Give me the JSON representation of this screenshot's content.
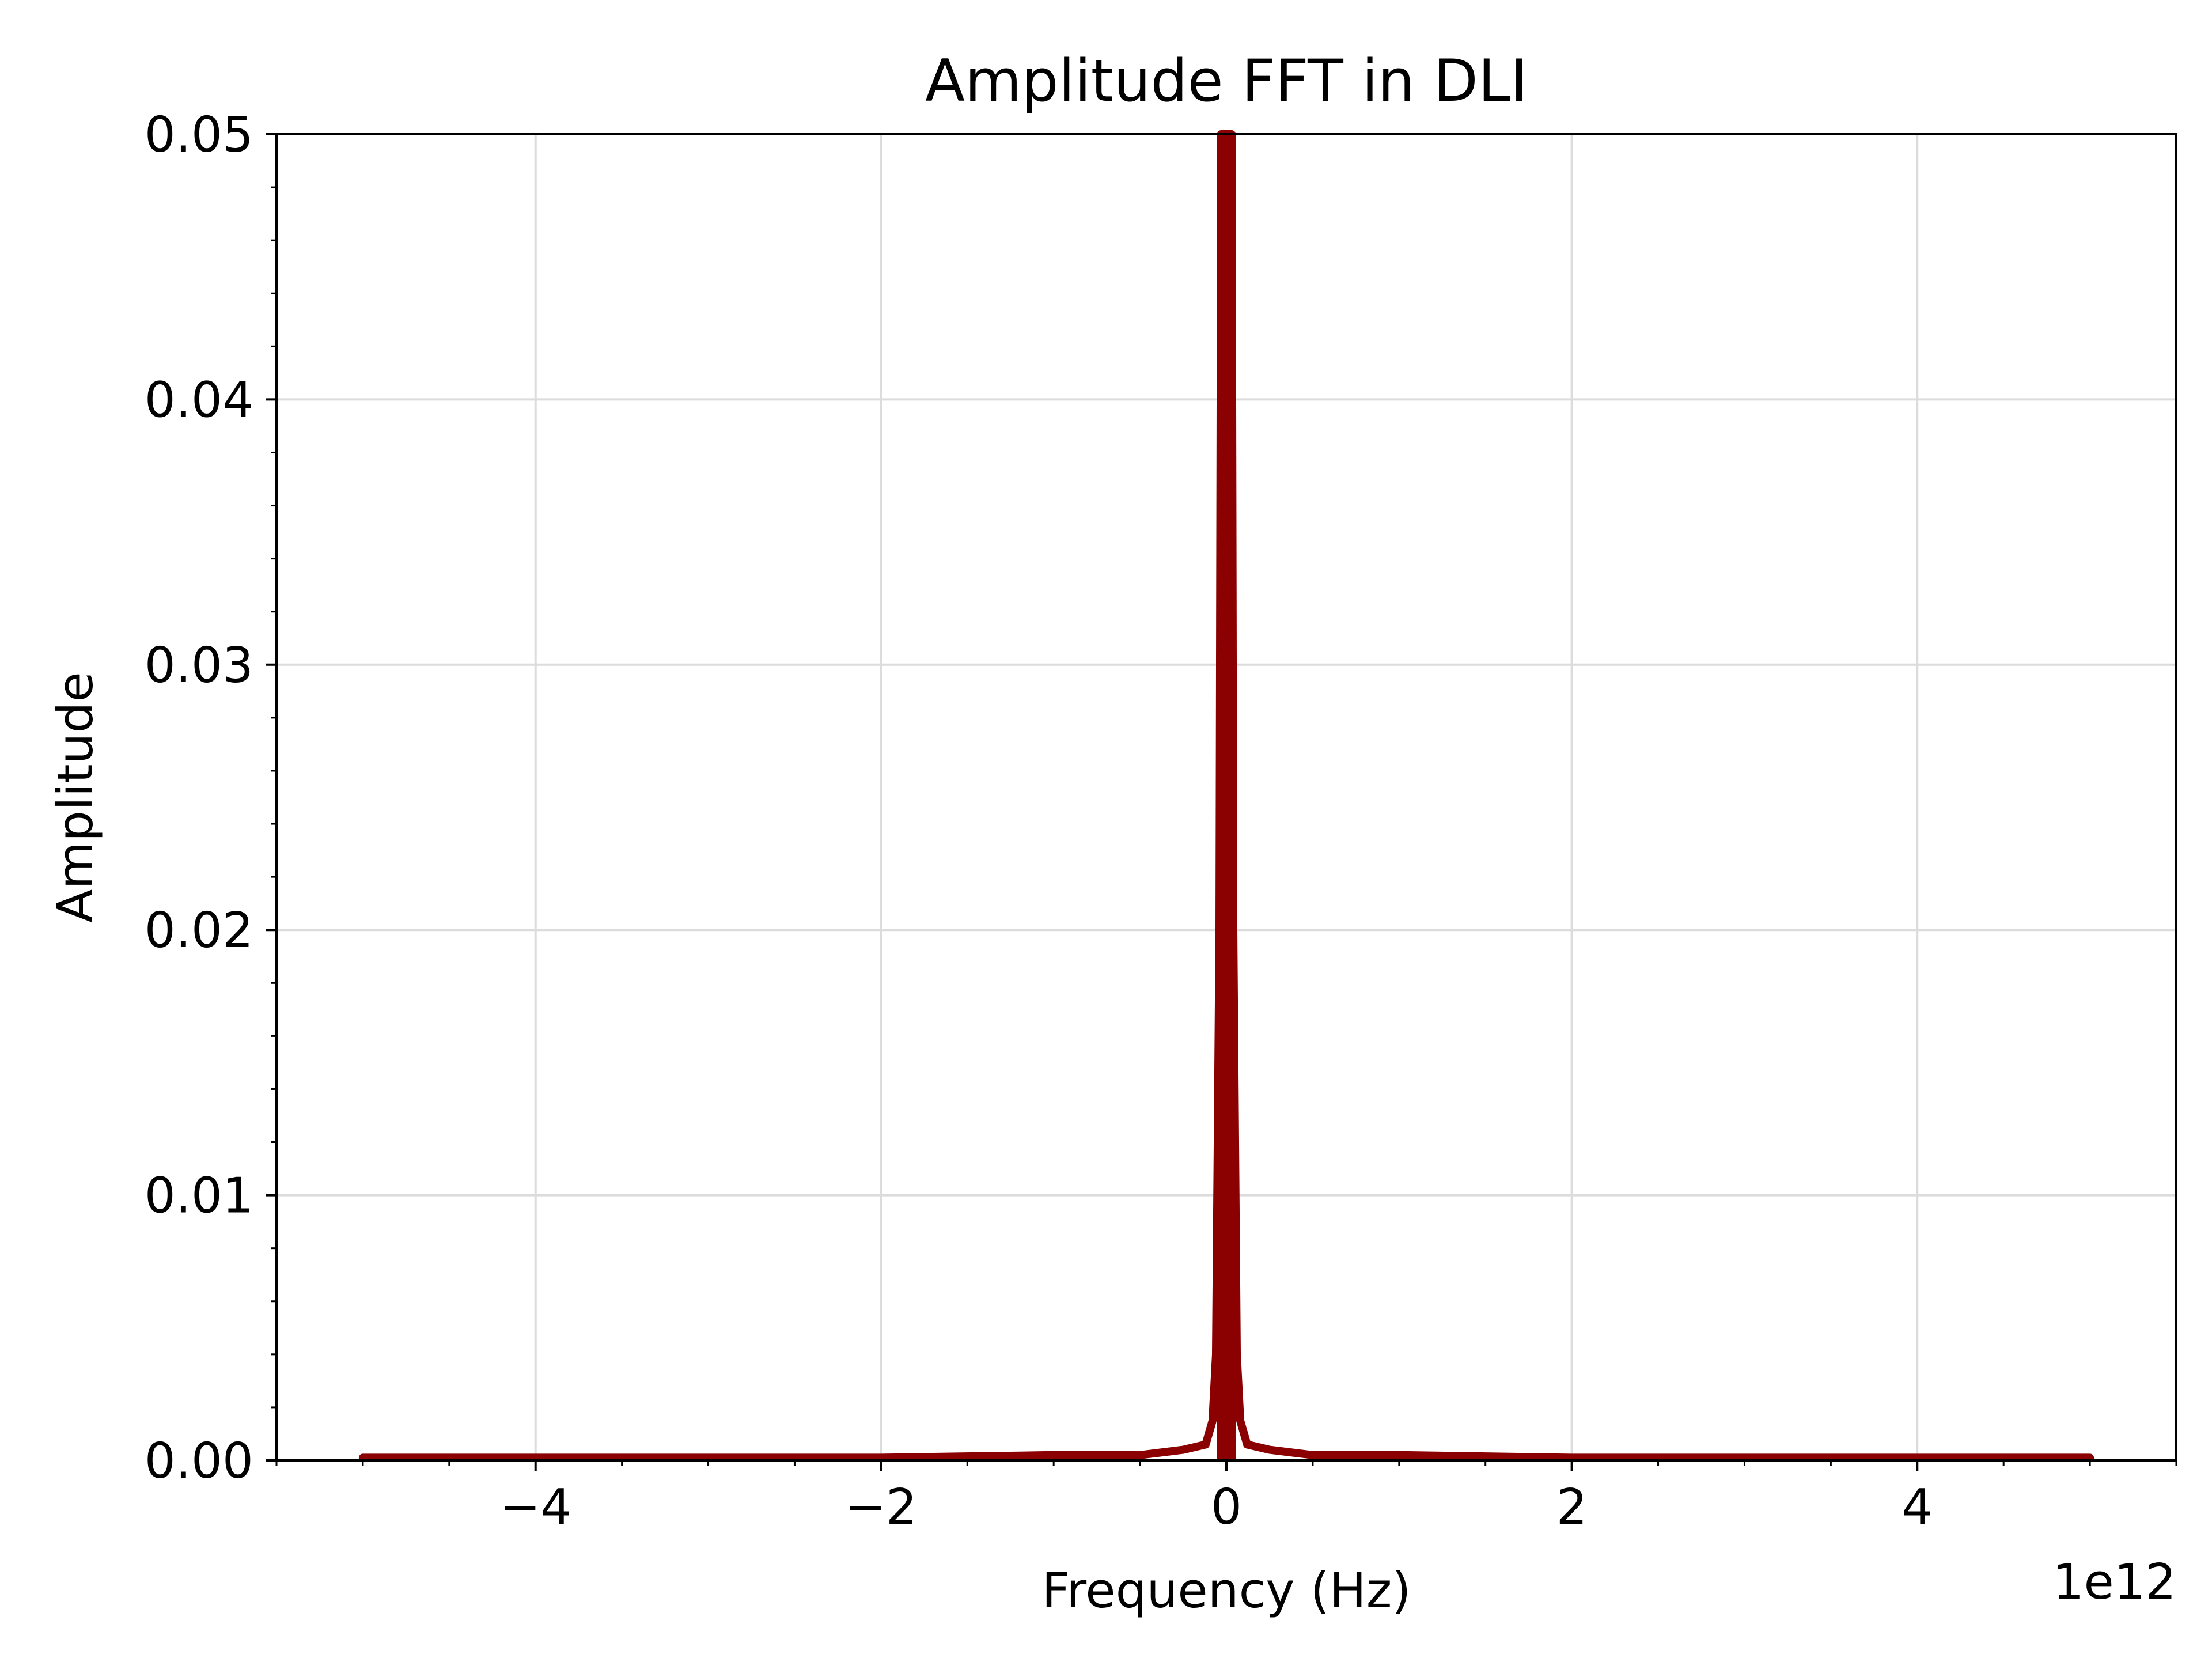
{
  "chart_data": {
    "type": "line",
    "title": "Amplitude FFT in DLI",
    "xlabel": "Frequency (Hz)",
    "ylabel": "Amplitude",
    "x_offset_label": "1e12",
    "xlim": [
      -5.5,
      5.5
    ],
    "ylim": [
      0,
      0.05
    ],
    "x_ticks": [
      {
        "value": -4,
        "label": "−4"
      },
      {
        "value": -2,
        "label": "−2"
      },
      {
        "value": 0,
        "label": "0"
      },
      {
        "value": 2,
        "label": "2"
      },
      {
        "value": 4,
        "label": "4"
      }
    ],
    "x_minor_step": 0.5,
    "y_ticks": [
      {
        "value": 0.0,
        "label": "0.00"
      },
      {
        "value": 0.01,
        "label": "0.01"
      },
      {
        "value": 0.02,
        "label": "0.02"
      },
      {
        "value": 0.03,
        "label": "0.03"
      },
      {
        "value": 0.04,
        "label": "0.04"
      },
      {
        "value": 0.05,
        "label": "0.05"
      }
    ],
    "y_minor_step": 0.002,
    "grid": true,
    "line_color": "#8b0000",
    "series": [
      {
        "x": [
          -5.0,
          -4.0,
          -3.0,
          -2.0,
          -1.0,
          -0.5,
          -0.25,
          -0.12,
          -0.08,
          -0.06,
          -0.04,
          -0.03,
          -0.02,
          0.0,
          0.02,
          0.03,
          0.04,
          0.06,
          0.08,
          0.12,
          0.25,
          0.5,
          1.0,
          2.0,
          3.0,
          4.0,
          5.0
        ],
        "values": [
          0.0001,
          0.0001,
          0.0001,
          0.0001,
          0.0002,
          0.0002,
          0.0004,
          0.0006,
          0.0015,
          0.004,
          0.02,
          0.05,
          0.05,
          0.05,
          0.05,
          0.05,
          0.02,
          0.004,
          0.0015,
          0.0006,
          0.0004,
          0.0002,
          0.0002,
          0.0001,
          0.0001,
          0.0001,
          0.0001
        ]
      }
    ]
  }
}
